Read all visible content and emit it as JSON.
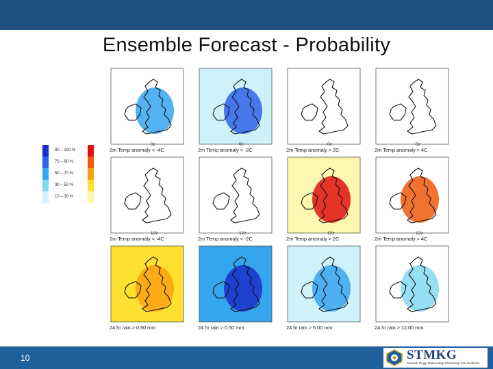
{
  "slide": {
    "title": "Ensemble Forecast - Probability",
    "page_number": "10"
  },
  "logo": {
    "text": "STMKG",
    "subtitle": "Sekolah Tinggi Meteorologi Klimatologi dan Geofisika"
  },
  "legend": {
    "labels": [
      "80 – 100 %",
      "70 – 80 %",
      "50 – 70 %",
      "30 – 50 %",
      "10 – 30 %"
    ],
    "blue_scale": [
      "#1a2fc8",
      "#2f63e8",
      "#35a5ee",
      "#83d8f2",
      "#cdf2fa"
    ],
    "warm_scale": [
      "#e01010",
      "#f05a0a",
      "#fba010",
      "#fde030",
      "#fdf7b0"
    ]
  },
  "panels": [
    {
      "caption": "2m Temp anomaly <  -4C",
      "hour": "0z",
      "fill": "#35a5ee",
      "base": "#ffffff"
    },
    {
      "caption": "2m Temp anomaly <  -2C",
      "hour": "0z",
      "fill": "#2f63e8",
      "base": "#cdf2fa"
    },
    {
      "caption": "2m Temp anomaly >  2C",
      "hour": "0z",
      "fill": "#ffffff",
      "base": "#ffffff"
    },
    {
      "caption": "2m Temp anomaly >  4C",
      "hour": "0z",
      "fill": "#ffffff",
      "base": "#ffffff"
    },
    {
      "caption": "2m Temp anomaly <  -4C",
      "hour": "12z",
      "fill": "#ffffff",
      "base": "#ffffff"
    },
    {
      "caption": "2m Temp anomaly <  -2C",
      "hour": "12z",
      "fill": "#ffffff",
      "base": "#ffffff"
    },
    {
      "caption": "2m Temp anomaly >  2C",
      "hour": "12z",
      "fill": "#e01010",
      "base": "#fdf7b0"
    },
    {
      "caption": "2m Temp anomaly >  4C",
      "hour": "12z",
      "fill": "#f05a0a",
      "base": "#ffffff"
    },
    {
      "caption": "24 hr rain >  0.50 mm",
      "hour": "",
      "fill": "#fba010",
      "base": "#fde030"
    },
    {
      "caption": "24 hr rain >  0.50 mm",
      "hour": "",
      "fill": "#1a2fc8",
      "base": "#35a5ee"
    },
    {
      "caption": "24 hr rain >  5.00 mm",
      "hour": "",
      "fill": "#35a5ee",
      "base": "#cdf2fa"
    },
    {
      "caption": "24 hr rain >  12.00 mm",
      "hour": "",
      "fill": "#83d8f2",
      "base": "#ffffff"
    }
  ]
}
